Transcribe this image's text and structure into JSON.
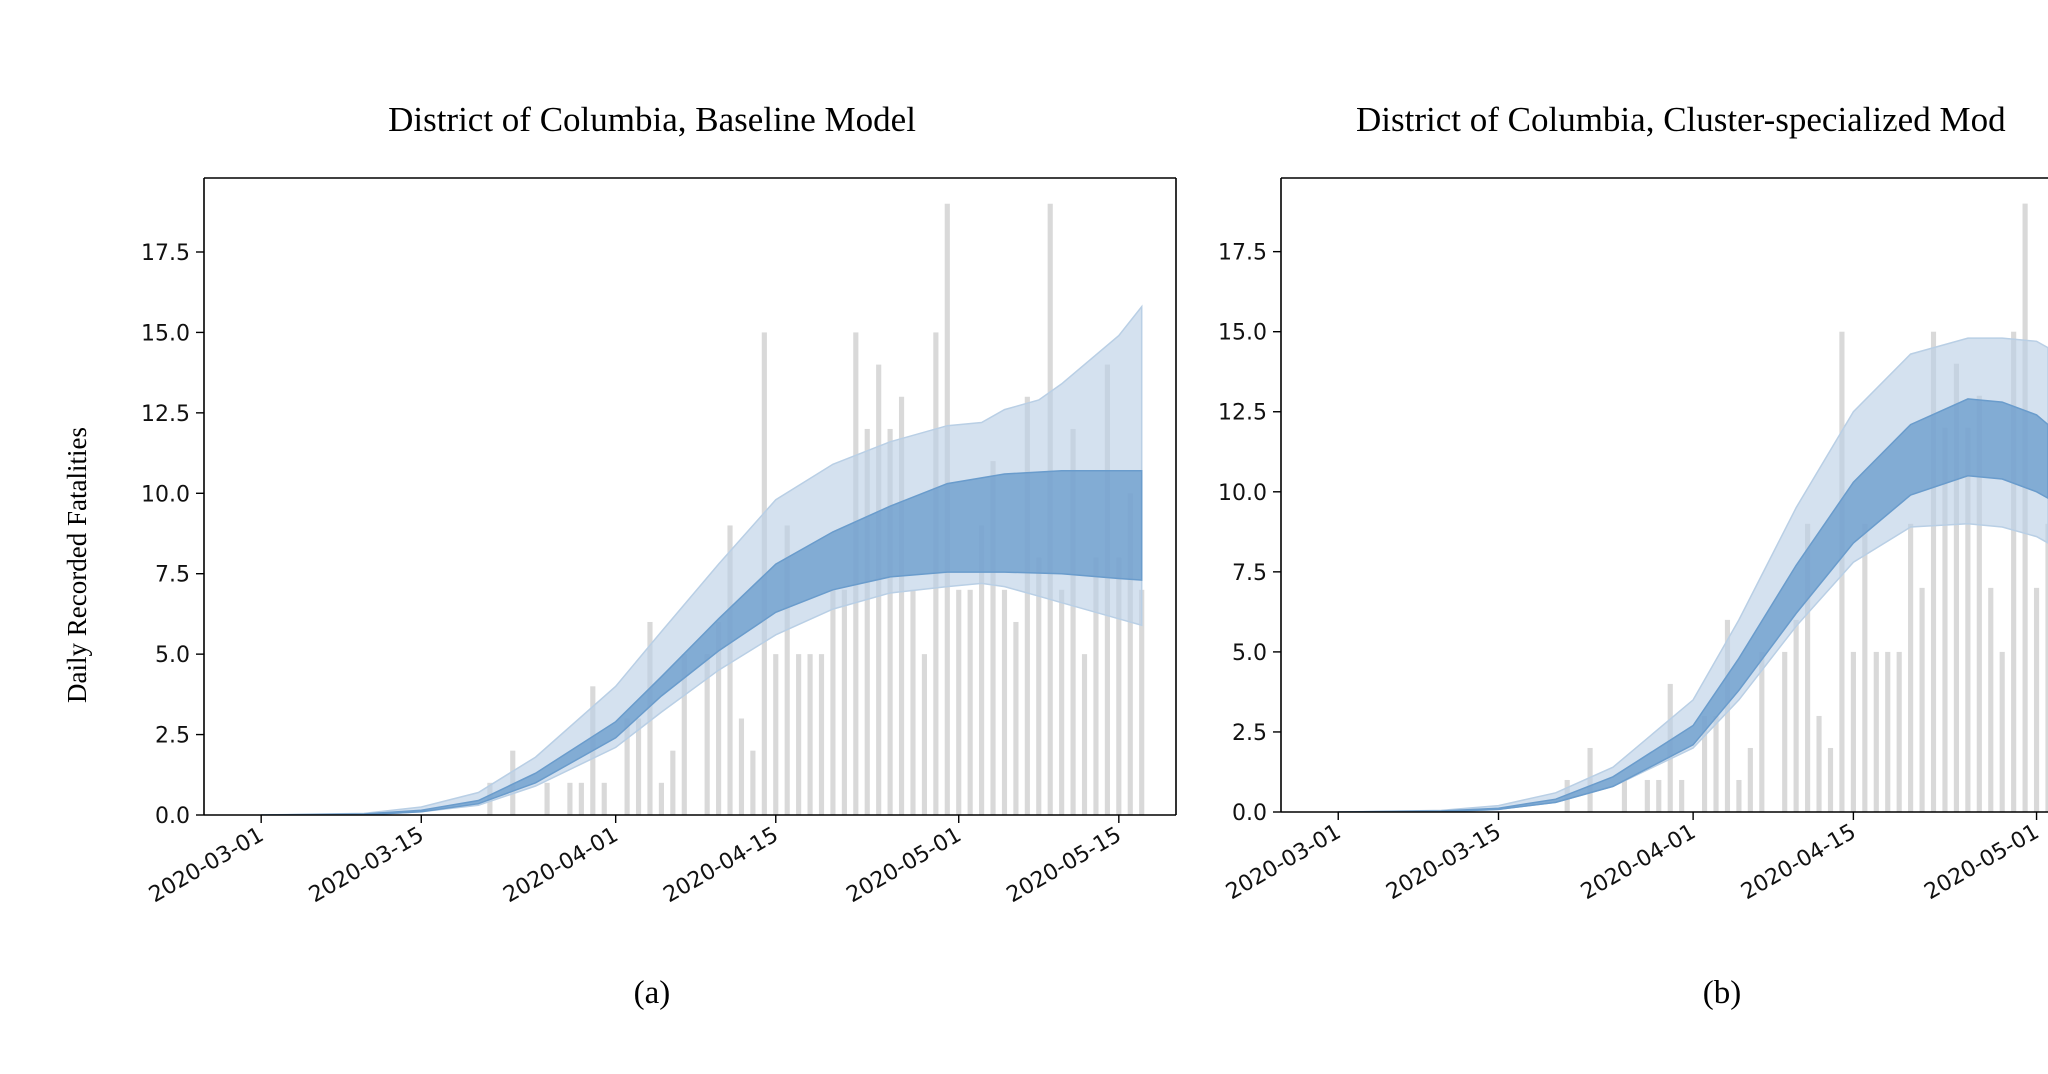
{
  "figure": {
    "ylabel": "Daily Recorded Fatalities"
  },
  "chart_data": [
    {
      "type": "bar",
      "panel": "a",
      "title": "District of Columbia, Baseline Model",
      "caption": "(a)",
      "xlabel": "",
      "ylabel": "Daily Recorded Fatalities",
      "x_ticks": [
        "2020-03-01",
        "2020-03-15",
        "2020-04-01",
        "2020-04-15",
        "2020-05-01",
        "2020-05-15"
      ],
      "y_ticks": [
        "0.0",
        "2.5",
        "5.0",
        "7.5",
        "10.0",
        "12.5",
        "15.0",
        "17.5"
      ],
      "ylim": [
        0,
        19.8
      ],
      "xlim": [
        "2020-02-25",
        "2020-05-20"
      ],
      "grid": false,
      "bars": {
        "name": "Observed daily fatalities",
        "color": "#d9d9d9",
        "dates": [
          "2020-03-21",
          "2020-03-23",
          "2020-03-26",
          "2020-03-28",
          "2020-03-29",
          "2020-03-30",
          "2020-03-31",
          "2020-04-02",
          "2020-04-03",
          "2020-04-04",
          "2020-04-05",
          "2020-04-06",
          "2020-04-07",
          "2020-04-09",
          "2020-04-10",
          "2020-04-11",
          "2020-04-12",
          "2020-04-13",
          "2020-04-14",
          "2020-04-15",
          "2020-04-16",
          "2020-04-17",
          "2020-04-18",
          "2020-04-19",
          "2020-04-20",
          "2020-04-21",
          "2020-04-22",
          "2020-04-23",
          "2020-04-24",
          "2020-04-25",
          "2020-04-26",
          "2020-04-27",
          "2020-04-28",
          "2020-04-29",
          "2020-04-30",
          "2020-05-01",
          "2020-05-02",
          "2020-05-03",
          "2020-05-04",
          "2020-05-05",
          "2020-05-06",
          "2020-05-07",
          "2020-05-08",
          "2020-05-09",
          "2020-05-10",
          "2020-05-11",
          "2020-05-12",
          "2020-05-13",
          "2020-05-14",
          "2020-05-15",
          "2020-05-16",
          "2020-05-17"
        ],
        "values": [
          1,
          2,
          1,
          1,
          1,
          4,
          1,
          3,
          3,
          6,
          1,
          2,
          5,
          5,
          6,
          9,
          3,
          2,
          15,
          5,
          9,
          5,
          5,
          5,
          7,
          7,
          15,
          12,
          14,
          12,
          13,
          7,
          5,
          15,
          19,
          7,
          7,
          9,
          11,
          7,
          6,
          13,
          8,
          19,
          7,
          12,
          5,
          8,
          14,
          8,
          10,
          7
        ]
      },
      "series": [
        {
          "name": "Outer band",
          "color": "#b9cfe5",
          "dates": [
            "2020-03-01",
            "2020-03-10",
            "2020-03-15",
            "2020-03-20",
            "2020-03-25",
            "2020-04-01",
            "2020-04-05",
            "2020-04-10",
            "2020-04-15",
            "2020-04-20",
            "2020-04-25",
            "2020-04-30",
            "2020-05-03",
            "2020-05-05",
            "2020-05-08",
            "2020-05-10",
            "2020-05-15",
            "2020-05-17"
          ],
          "upper": [
            0,
            0.05,
            0.25,
            0.7,
            1.8,
            4.0,
            5.7,
            7.8,
            9.8,
            10.9,
            11.6,
            12.1,
            12.2,
            12.6,
            12.9,
            13.4,
            14.9,
            15.8
          ],
          "lower": [
            0,
            0,
            0.1,
            0.3,
            0.9,
            2.1,
            3.2,
            4.5,
            5.6,
            6.4,
            6.9,
            7.1,
            7.2,
            7.1,
            6.8,
            6.6,
            6.1,
            5.9
          ]
        },
        {
          "name": "Inner band",
          "color": "#6a9ccc",
          "dates": [
            "2020-03-01",
            "2020-03-10",
            "2020-03-15",
            "2020-03-20",
            "2020-03-25",
            "2020-04-01",
            "2020-04-05",
            "2020-04-10",
            "2020-04-15",
            "2020-04-20",
            "2020-04-25",
            "2020-04-30",
            "2020-05-05",
            "2020-05-10",
            "2020-05-15",
            "2020-05-17"
          ],
          "upper": [
            0,
            0.03,
            0.15,
            0.45,
            1.3,
            2.9,
            4.3,
            6.1,
            7.8,
            8.8,
            9.6,
            10.3,
            10.6,
            10.7,
            10.7,
            10.7
          ],
          "lower": [
            0,
            0.01,
            0.1,
            0.35,
            1.0,
            2.4,
            3.7,
            5.1,
            6.3,
            7.0,
            7.4,
            7.55,
            7.55,
            7.5,
            7.35,
            7.3
          ]
        }
      ]
    },
    {
      "type": "bar",
      "panel": "b",
      "title": "District of Columbia, Cluster-specialized Mod",
      "caption": "(b)",
      "xlabel": "",
      "ylabel": "",
      "x_ticks": [
        "2020-03-01",
        "2020-03-15",
        "2020-04-01",
        "2020-04-15",
        "2020-05-01"
      ],
      "y_ticks": [
        "0.0",
        "2.5",
        "5.0",
        "7.5",
        "10.0",
        "12.5",
        "15.0",
        "17.5"
      ],
      "ylim": [
        0,
        19.8
      ],
      "xlim": [
        "2020-02-25",
        "2020-05-02"
      ],
      "grid": false,
      "bars": {
        "name": "Observed daily fatalities",
        "color": "#d9d9d9",
        "dates": [
          "2020-03-21",
          "2020-03-23",
          "2020-03-26",
          "2020-03-28",
          "2020-03-29",
          "2020-03-30",
          "2020-03-31",
          "2020-04-02",
          "2020-04-03",
          "2020-04-04",
          "2020-04-05",
          "2020-04-06",
          "2020-04-07",
          "2020-04-09",
          "2020-04-10",
          "2020-04-11",
          "2020-04-12",
          "2020-04-13",
          "2020-04-14",
          "2020-04-15",
          "2020-04-16",
          "2020-04-17",
          "2020-04-18",
          "2020-04-19",
          "2020-04-20",
          "2020-04-21",
          "2020-04-22",
          "2020-04-23",
          "2020-04-24",
          "2020-04-25",
          "2020-04-26",
          "2020-04-27",
          "2020-04-28",
          "2020-04-29",
          "2020-04-30",
          "2020-05-01",
          "2020-05-02"
        ],
        "values": [
          1,
          2,
          1,
          1,
          1,
          4,
          1,
          3,
          3,
          6,
          1,
          2,
          5,
          5,
          6,
          9,
          3,
          2,
          15,
          5,
          9,
          5,
          5,
          5,
          9,
          7,
          15,
          12,
          14,
          12,
          13,
          7,
          5,
          15,
          19,
          7,
          9
        ]
      },
      "series": [
        {
          "name": "Outer band",
          "color": "#b9cfe5",
          "dates": [
            "2020-03-01",
            "2020-03-10",
            "2020-03-15",
            "2020-03-20",
            "2020-03-25",
            "2020-04-01",
            "2020-04-05",
            "2020-04-10",
            "2020-04-15",
            "2020-04-20",
            "2020-04-25",
            "2020-04-28",
            "2020-05-01",
            "2020-05-02"
          ],
          "upper": [
            0,
            0.05,
            0.2,
            0.6,
            1.4,
            3.5,
            6.0,
            9.5,
            12.5,
            14.3,
            14.8,
            14.8,
            14.7,
            14.5
          ],
          "lower": [
            0,
            0,
            0.08,
            0.3,
            0.8,
            2.0,
            3.5,
            5.8,
            7.8,
            8.9,
            9.0,
            8.9,
            8.6,
            8.4
          ]
        },
        {
          "name": "Inner band",
          "color": "#6a9ccc",
          "dates": [
            "2020-03-01",
            "2020-03-10",
            "2020-03-15",
            "2020-03-20",
            "2020-03-25",
            "2020-04-01",
            "2020-04-05",
            "2020-04-10",
            "2020-04-15",
            "2020-04-20",
            "2020-04-25",
            "2020-04-28",
            "2020-05-01",
            "2020-05-02"
          ],
          "upper": [
            0,
            0.03,
            0.12,
            0.4,
            1.1,
            2.7,
            4.8,
            7.7,
            10.3,
            12.1,
            12.9,
            12.8,
            12.4,
            12.1
          ],
          "lower": [
            0,
            0.01,
            0.08,
            0.3,
            0.8,
            2.1,
            3.8,
            6.2,
            8.4,
            9.9,
            10.5,
            10.4,
            10.0,
            9.8
          ]
        }
      ]
    }
  ]
}
